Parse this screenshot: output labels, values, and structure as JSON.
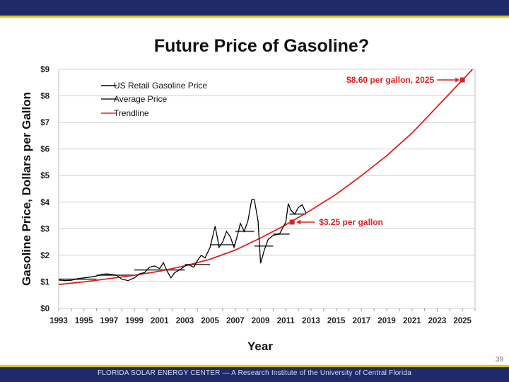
{
  "footer": {
    "text": "FLORIDA SOLAR ENERGY CENTER — A Research Institute of the University of Central Florida",
    "slide_number": "39"
  },
  "colors": {
    "bar": "#1f2a6b",
    "stripe": "#e5c41a",
    "accent": "#e02020"
  },
  "chart_data": {
    "type": "line",
    "title": "Future Price of Gasoline?",
    "xlabel": "Year",
    "ylabel": "Gasoline Price, Dollars per Gallon",
    "xlim": [
      1993,
      2026
    ],
    "ylim": [
      0,
      9
    ],
    "x_ticks": [
      "1993",
      "1995",
      "1997",
      "1999",
      "2001",
      "2003",
      "2005",
      "2007",
      "2009",
      "2011",
      "2013",
      "2015",
      "2017",
      "2019",
      "2021",
      "2023",
      "2025"
    ],
    "y_ticks": [
      "$0",
      "$1",
      "$2",
      "$3",
      "$4",
      "$5",
      "$6",
      "$7",
      "$8",
      "$9"
    ],
    "grid": true,
    "legend": [
      "US Retail Gasoline Price",
      "Average Price",
      "Trendline"
    ],
    "series": [
      {
        "name": "US Retail Gasoline Price",
        "color": "#000000",
        "x": [
          1993,
          1993.5,
          1994,
          1994.5,
          1995,
          1995.5,
          1996,
          1996.4,
          1996.8,
          1997.2,
          1997.6,
          1998,
          1998.5,
          1999,
          1999.4,
          1999.8,
          2000.2,
          2000.6,
          2001,
          2001.3,
          2001.6,
          2001.9,
          2002.2,
          2002.6,
          2003,
          2003.3,
          2003.7,
          2004,
          2004.3,
          2004.6,
          2005,
          2005.4,
          2005.6,
          2005.7,
          2006,
          2006.3,
          2006.6,
          2006.9,
          2007.2,
          2007.4,
          2007.7,
          2008,
          2008.3,
          2008.5,
          2008.8,
          2009,
          2009.3,
          2009.6,
          2010,
          2010.5,
          2011,
          2011.2,
          2011.4,
          2011.7,
          2012,
          2012.3,
          2012.6
        ],
        "y": [
          1.07,
          1.05,
          1.06,
          1.12,
          1.15,
          1.18,
          1.22,
          1.28,
          1.3,
          1.28,
          1.25,
          1.1,
          1.05,
          1.15,
          1.3,
          1.35,
          1.55,
          1.6,
          1.5,
          1.72,
          1.4,
          1.15,
          1.35,
          1.45,
          1.6,
          1.65,
          1.55,
          1.8,
          2.0,
          1.9,
          2.3,
          3.1,
          2.6,
          2.3,
          2.5,
          2.9,
          2.7,
          2.3,
          2.8,
          3.2,
          2.9,
          3.3,
          4.1,
          4.1,
          3.3,
          1.7,
          2.2,
          2.6,
          2.75,
          2.8,
          3.25,
          3.95,
          3.7,
          3.55,
          3.8,
          3.9,
          3.6
        ]
      },
      {
        "name": "Average Price",
        "color": "#5a5a5a",
        "segments": [
          {
            "from": 1993,
            "to": 1996,
            "value": 1.1
          },
          {
            "from": 1996,
            "to": 1999,
            "value": 1.25
          },
          {
            "from": 1999,
            "to": 2001,
            "value": 1.45
          },
          {
            "from": 2001,
            "to": 2003,
            "value": 1.45
          },
          {
            "from": 2003,
            "to": 2005,
            "value": 1.65
          },
          {
            "from": 2005,
            "to": 2007,
            "value": 2.4
          },
          {
            "from": 2007,
            "to": 2008.5,
            "value": 2.9
          },
          {
            "from": 2008.5,
            "to": 2010,
            "value": 2.35
          },
          {
            "from": 2010,
            "to": 2011.3,
            "value": 2.8
          },
          {
            "from": 2011.3,
            "to": 2012.6,
            "value": 3.55
          }
        ]
      },
      {
        "name": "Trendline",
        "color": "#e02020",
        "x": [
          1993,
          1995,
          1997,
          1999,
          2001,
          2003,
          2005,
          2007,
          2009,
          2011,
          2013,
          2015,
          2017,
          2019,
          2021,
          2023,
          2025,
          2026
        ],
        "y": [
          0.9,
          1.0,
          1.12,
          1.25,
          1.4,
          1.6,
          1.85,
          2.2,
          2.65,
          3.15,
          3.7,
          4.3,
          5.0,
          5.75,
          6.6,
          7.6,
          8.6,
          9.1
        ]
      }
    ],
    "annotations": [
      {
        "text": "$8.60 per gallon, 2025",
        "x": 2025,
        "y": 8.6
      },
      {
        "text": "$3.25 per gallon",
        "x": 2011.5,
        "y": 3.25
      }
    ]
  }
}
